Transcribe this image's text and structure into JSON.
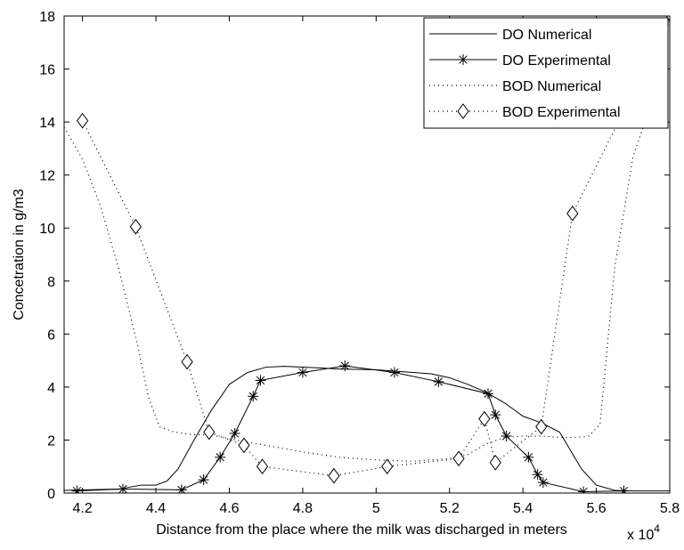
{
  "chart_data": {
    "type": "line",
    "title": "",
    "xlabel": "Distance from the place where the milk was discharged in meters",
    "ylabel": "Concetration in g/m3",
    "x_multiplier_label": "x 10",
    "x_multiplier_exponent": "4",
    "xlim": [
      4.15,
      5.8
    ],
    "ylim": [
      0,
      18
    ],
    "xticks": [
      4.2,
      4.4,
      4.6,
      4.8,
      5,
      5.2,
      5.4,
      5.6,
      5.8
    ],
    "xtick_labels": [
      "4.2",
      "4.4",
      "4.6",
      "4.8",
      "5",
      "5.2",
      "5.4",
      "5.6",
      "5.8"
    ],
    "yticks": [
      0,
      2,
      4,
      6,
      8,
      10,
      12,
      14,
      16,
      18
    ],
    "ytick_labels": [
      "0",
      "2",
      "4",
      "6",
      "8",
      "10",
      "12",
      "14",
      "16",
      "18"
    ],
    "grid": false,
    "legend_position": "top-right",
    "series": [
      {
        "name": "DO Numerical",
        "style": "solid",
        "marker": "none",
        "x": [
          4.15,
          4.3,
          4.36,
          4.4,
          4.43,
          4.46,
          4.5,
          4.55,
          4.6,
          4.65,
          4.7,
          4.75,
          4.8,
          4.85,
          4.9,
          5.0,
          5.1,
          5.15,
          5.2,
          5.25,
          5.3,
          5.35,
          5.4,
          5.45,
          5.5,
          5.53,
          5.56,
          5.6,
          5.65,
          5.7,
          5.8
        ],
        "y": [
          0.1,
          0.15,
          0.3,
          0.3,
          0.45,
          0.9,
          1.9,
          3.1,
          4.1,
          4.55,
          4.75,
          4.78,
          4.75,
          4.72,
          4.68,
          4.65,
          4.55,
          4.5,
          4.35,
          4.1,
          3.8,
          3.4,
          2.9,
          2.65,
          2.3,
          1.6,
          0.9,
          0.3,
          0.1,
          0.08,
          0.08
        ]
      },
      {
        "name": "DO Experimental",
        "style": "solid",
        "marker": "star",
        "x": [
          4.185,
          4.31,
          4.47,
          4.53,
          4.575,
          4.615,
          4.665,
          4.685,
          4.8,
          4.915,
          5.05,
          5.17,
          5.305,
          5.325,
          5.355,
          5.415,
          5.44,
          5.455,
          5.565,
          5.675
        ],
        "y": [
          0.08,
          0.15,
          0.12,
          0.5,
          1.35,
          2.25,
          3.65,
          4.25,
          4.55,
          4.8,
          4.55,
          4.2,
          3.75,
          2.95,
          2.15,
          1.35,
          0.7,
          0.4,
          0.05,
          0.08
        ]
      },
      {
        "name": "BOD Numerical",
        "style": "dotted",
        "marker": "none",
        "x": [
          4.15,
          4.2,
          4.25,
          4.3,
          4.35,
          4.38,
          4.41,
          4.45,
          4.5,
          4.55,
          4.6,
          4.7,
          4.8,
          4.9,
          5.0,
          5.1,
          5.2,
          5.25,
          5.3,
          5.35,
          5.4,
          5.45,
          5.5,
          5.55,
          5.58,
          5.61,
          5.65,
          5.7,
          5.75,
          5.78,
          5.8
        ],
        "y": [
          13.8,
          12.6,
          10.8,
          8.4,
          5.6,
          3.6,
          2.5,
          2.3,
          2.2,
          2.2,
          2.05,
          1.8,
          1.55,
          1.35,
          1.25,
          1.2,
          1.3,
          1.45,
          1.85,
          2.1,
          2.15,
          2.15,
          2.1,
          2.1,
          2.15,
          2.6,
          8.5,
          12.7,
          14.7,
          16.5,
          18.0
        ]
      },
      {
        "name": "BOD Experimental",
        "style": "dotted",
        "marker": "diamond",
        "x": [
          4.2,
          4.345,
          4.485,
          4.545,
          4.64,
          4.69,
          4.885,
          5.03,
          5.225,
          5.295,
          5.325,
          5.45,
          5.535,
          5.805
        ],
        "y": [
          14.05,
          10.05,
          4.95,
          2.3,
          1.8,
          1.0,
          0.65,
          1.0,
          1.3,
          2.8,
          1.15,
          2.5,
          10.55,
          18.0
        ]
      }
    ]
  }
}
